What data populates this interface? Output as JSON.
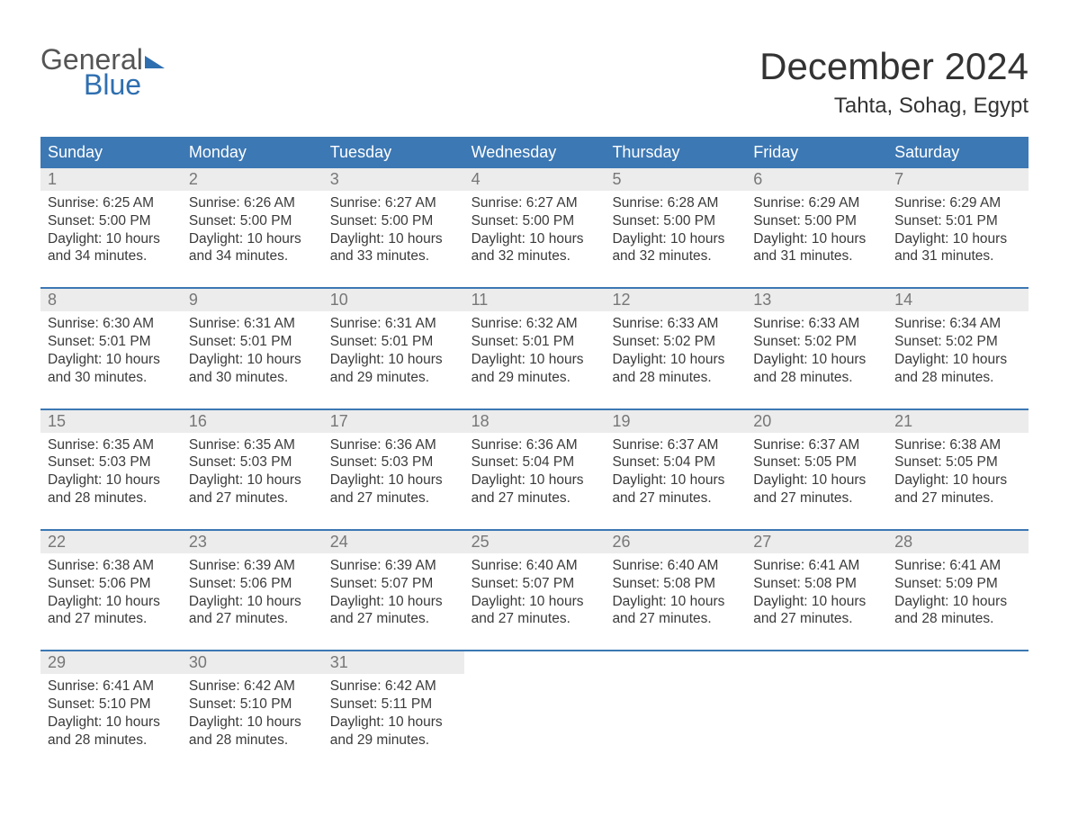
{
  "brand": {
    "word1": "General",
    "word2": "Blue",
    "accent_color": "#2f6fb0"
  },
  "title": "December 2024",
  "location": "Tahta, Sohag, Egypt",
  "header_bg": "#3c78b4",
  "daynum_bg": "#ececec",
  "text_color": "#3a3a3a",
  "days_of_week": [
    "Sunday",
    "Monday",
    "Tuesday",
    "Wednesday",
    "Thursday",
    "Friday",
    "Saturday"
  ],
  "labels": {
    "sunrise": "Sunrise: ",
    "sunset": "Sunset: ",
    "daylight": "Daylight: "
  },
  "weeks": [
    [
      {
        "n": "1",
        "sunrise": "6:25 AM",
        "sunset": "5:00 PM",
        "daylight": "10 hours and 34 minutes."
      },
      {
        "n": "2",
        "sunrise": "6:26 AM",
        "sunset": "5:00 PM",
        "daylight": "10 hours and 34 minutes."
      },
      {
        "n": "3",
        "sunrise": "6:27 AM",
        "sunset": "5:00 PM",
        "daylight": "10 hours and 33 minutes."
      },
      {
        "n": "4",
        "sunrise": "6:27 AM",
        "sunset": "5:00 PM",
        "daylight": "10 hours and 32 minutes."
      },
      {
        "n": "5",
        "sunrise": "6:28 AM",
        "sunset": "5:00 PM",
        "daylight": "10 hours and 32 minutes."
      },
      {
        "n": "6",
        "sunrise": "6:29 AM",
        "sunset": "5:00 PM",
        "daylight": "10 hours and 31 minutes."
      },
      {
        "n": "7",
        "sunrise": "6:29 AM",
        "sunset": "5:01 PM",
        "daylight": "10 hours and 31 minutes."
      }
    ],
    [
      {
        "n": "8",
        "sunrise": "6:30 AM",
        "sunset": "5:01 PM",
        "daylight": "10 hours and 30 minutes."
      },
      {
        "n": "9",
        "sunrise": "6:31 AM",
        "sunset": "5:01 PM",
        "daylight": "10 hours and 30 minutes."
      },
      {
        "n": "10",
        "sunrise": "6:31 AM",
        "sunset": "5:01 PM",
        "daylight": "10 hours and 29 minutes."
      },
      {
        "n": "11",
        "sunrise": "6:32 AM",
        "sunset": "5:01 PM",
        "daylight": "10 hours and 29 minutes."
      },
      {
        "n": "12",
        "sunrise": "6:33 AM",
        "sunset": "5:02 PM",
        "daylight": "10 hours and 28 minutes."
      },
      {
        "n": "13",
        "sunrise": "6:33 AM",
        "sunset": "5:02 PM",
        "daylight": "10 hours and 28 minutes."
      },
      {
        "n": "14",
        "sunrise": "6:34 AM",
        "sunset": "5:02 PM",
        "daylight": "10 hours and 28 minutes."
      }
    ],
    [
      {
        "n": "15",
        "sunrise": "6:35 AM",
        "sunset": "5:03 PM",
        "daylight": "10 hours and 28 minutes."
      },
      {
        "n": "16",
        "sunrise": "6:35 AM",
        "sunset": "5:03 PM",
        "daylight": "10 hours and 27 minutes."
      },
      {
        "n": "17",
        "sunrise": "6:36 AM",
        "sunset": "5:03 PM",
        "daylight": "10 hours and 27 minutes."
      },
      {
        "n": "18",
        "sunrise": "6:36 AM",
        "sunset": "5:04 PM",
        "daylight": "10 hours and 27 minutes."
      },
      {
        "n": "19",
        "sunrise": "6:37 AM",
        "sunset": "5:04 PM",
        "daylight": "10 hours and 27 minutes."
      },
      {
        "n": "20",
        "sunrise": "6:37 AM",
        "sunset": "5:05 PM",
        "daylight": "10 hours and 27 minutes."
      },
      {
        "n": "21",
        "sunrise": "6:38 AM",
        "sunset": "5:05 PM",
        "daylight": "10 hours and 27 minutes."
      }
    ],
    [
      {
        "n": "22",
        "sunrise": "6:38 AM",
        "sunset": "5:06 PM",
        "daylight": "10 hours and 27 minutes."
      },
      {
        "n": "23",
        "sunrise": "6:39 AM",
        "sunset": "5:06 PM",
        "daylight": "10 hours and 27 minutes."
      },
      {
        "n": "24",
        "sunrise": "6:39 AM",
        "sunset": "5:07 PM",
        "daylight": "10 hours and 27 minutes."
      },
      {
        "n": "25",
        "sunrise": "6:40 AM",
        "sunset": "5:07 PM",
        "daylight": "10 hours and 27 minutes."
      },
      {
        "n": "26",
        "sunrise": "6:40 AM",
        "sunset": "5:08 PM",
        "daylight": "10 hours and 27 minutes."
      },
      {
        "n": "27",
        "sunrise": "6:41 AM",
        "sunset": "5:08 PM",
        "daylight": "10 hours and 27 minutes."
      },
      {
        "n": "28",
        "sunrise": "6:41 AM",
        "sunset": "5:09 PM",
        "daylight": "10 hours and 28 minutes."
      }
    ],
    [
      {
        "n": "29",
        "sunrise": "6:41 AM",
        "sunset": "5:10 PM",
        "daylight": "10 hours and 28 minutes."
      },
      {
        "n": "30",
        "sunrise": "6:42 AM",
        "sunset": "5:10 PM",
        "daylight": "10 hours and 28 minutes."
      },
      {
        "n": "31",
        "sunrise": "6:42 AM",
        "sunset": "5:11 PM",
        "daylight": "10 hours and 29 minutes."
      },
      {
        "empty": true
      },
      {
        "empty": true
      },
      {
        "empty": true
      },
      {
        "empty": true
      }
    ]
  ]
}
